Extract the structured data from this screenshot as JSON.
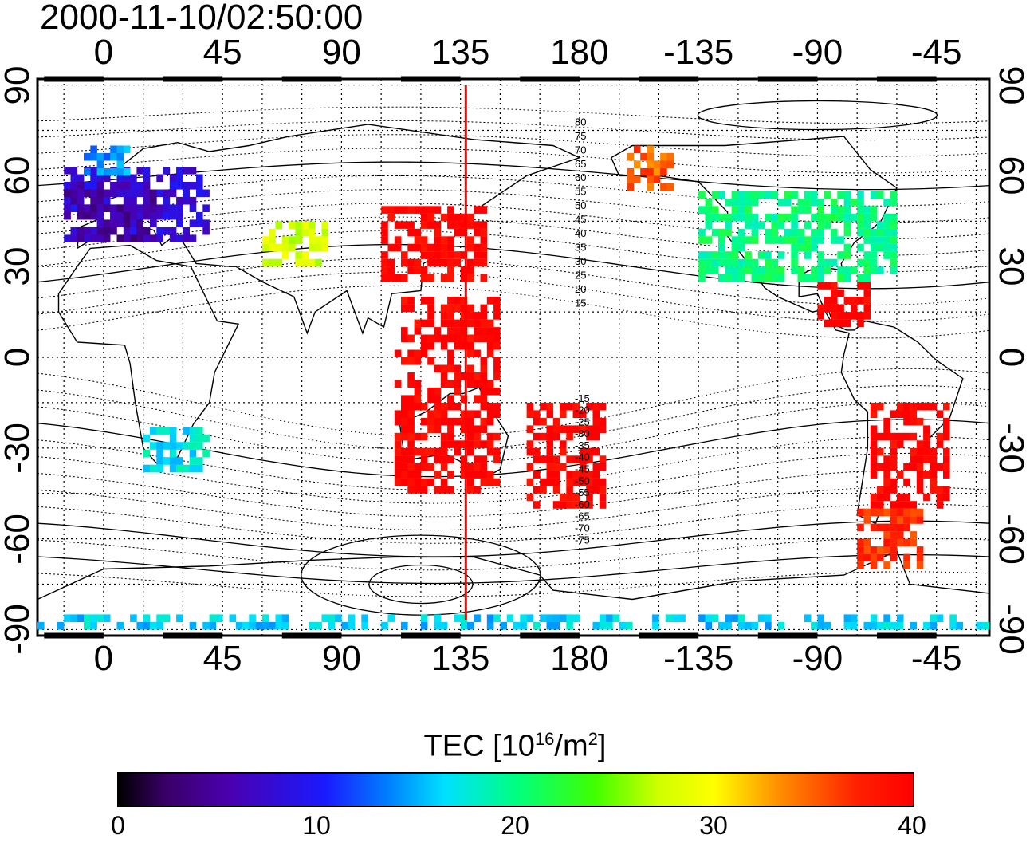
{
  "timestamp": "2000-11-10/02:50:00",
  "map": {
    "lon_ticks_top": [
      "0",
      "45",
      "90",
      "135",
      "180",
      "-135",
      "-90",
      "-45"
    ],
    "lon_ticks_bottom": [
      "0",
      "45",
      "90",
      "135",
      "180",
      "-135",
      "-90",
      "-45"
    ],
    "lat_ticks_left": [
      "90",
      "60",
      "30",
      "0",
      "-30",
      "-60",
      "-90"
    ],
    "lat_ticks_right": [
      "90",
      "60",
      "30",
      "0",
      "-30",
      "-60",
      "-90"
    ],
    "lon_tick_values": [
      0,
      45,
      90,
      135,
      180,
      225,
      270,
      315
    ],
    "lat_tick_values": [
      90,
      60,
      30,
      0,
      -30,
      -60,
      -90
    ],
    "lon_range": [
      -25,
      335
    ],
    "lat_range": [
      -92,
      92
    ],
    "grid": true,
    "meridian_marker_lon": 137,
    "contour_labels": [
      "80",
      "75",
      "70",
      "65",
      "60",
      "55",
      "50",
      "45",
      "40",
      "35",
      "30",
      "25",
      "20",
      "15",
      "-15",
      "-20",
      "-25",
      "-30",
      "-35",
      "-40",
      "-45",
      "-50",
      "-55",
      "-60",
      "-65",
      "-70",
      "-75"
    ],
    "colors": {
      "frame": "#000000",
      "marker_line": "#ff0000"
    }
  },
  "colorbar": {
    "title_main": "TEC  [10",
    "title_exp1": "16",
    "title_mid": "/m",
    "title_exp2": "2",
    "title_end": "]",
    "ticks": [
      "0",
      "10",
      "20",
      "30",
      "40"
    ],
    "tick_values": [
      0,
      10,
      20,
      30,
      40
    ],
    "range": [
      0,
      40
    ]
  },
  "chart_data": {
    "type": "heatmap",
    "title": "2000-11-10/02:50:00",
    "xlabel": "",
    "ylabel": "",
    "colorbar_label": "TEC [10^16/m^2]",
    "colorbar_range": [
      0,
      40
    ],
    "xlim": [
      -25,
      335
    ],
    "ylim": [
      -92,
      92
    ],
    "regions": [
      {
        "lon": [
          -15,
          40
        ],
        "lat": [
          38,
          62
        ],
        "tec": 8
      },
      {
        "lon": [
          -15,
          20
        ],
        "lat": [
          38,
          58
        ],
        "tec": 5
      },
      {
        "lon": [
          -10,
          10
        ],
        "lat": [
          60,
          70
        ],
        "tec": 14
      },
      {
        "lon": [
          60,
          85
        ],
        "lat": [
          30,
          45
        ],
        "tec": 28
      },
      {
        "lon": [
          105,
          145
        ],
        "lat": [
          25,
          50
        ],
        "tec": 40
      },
      {
        "lon": [
          110,
          150
        ],
        "lat": [
          -45,
          20
        ],
        "tec": 40
      },
      {
        "lon": [
          160,
          190
        ],
        "lat": [
          -50,
          -15
        ],
        "tec": 40
      },
      {
        "lon": [
          198,
          215
        ],
        "lat": [
          55,
          70
        ],
        "tec": 35
      },
      {
        "lon": [
          225,
          300
        ],
        "lat": [
          25,
          55
        ],
        "tec": 20
      },
      {
        "lon": [
          270,
          290
        ],
        "lat": [
          10,
          25
        ],
        "tec": 40
      },
      {
        "lon": [
          290,
          320
        ],
        "lat": [
          -50,
          -15
        ],
        "tec": 40
      },
      {
        "lon": [
          285,
          310
        ],
        "lat": [
          -70,
          -50
        ],
        "tec": 37
      },
      {
        "lon": [
          15,
          40
        ],
        "lat": [
          -38,
          -25
        ],
        "tec": 17
      },
      {
        "lon": [
          -25,
          335
        ],
        "lat": [
          -90,
          -85
        ],
        "tec": 16
      }
    ]
  }
}
